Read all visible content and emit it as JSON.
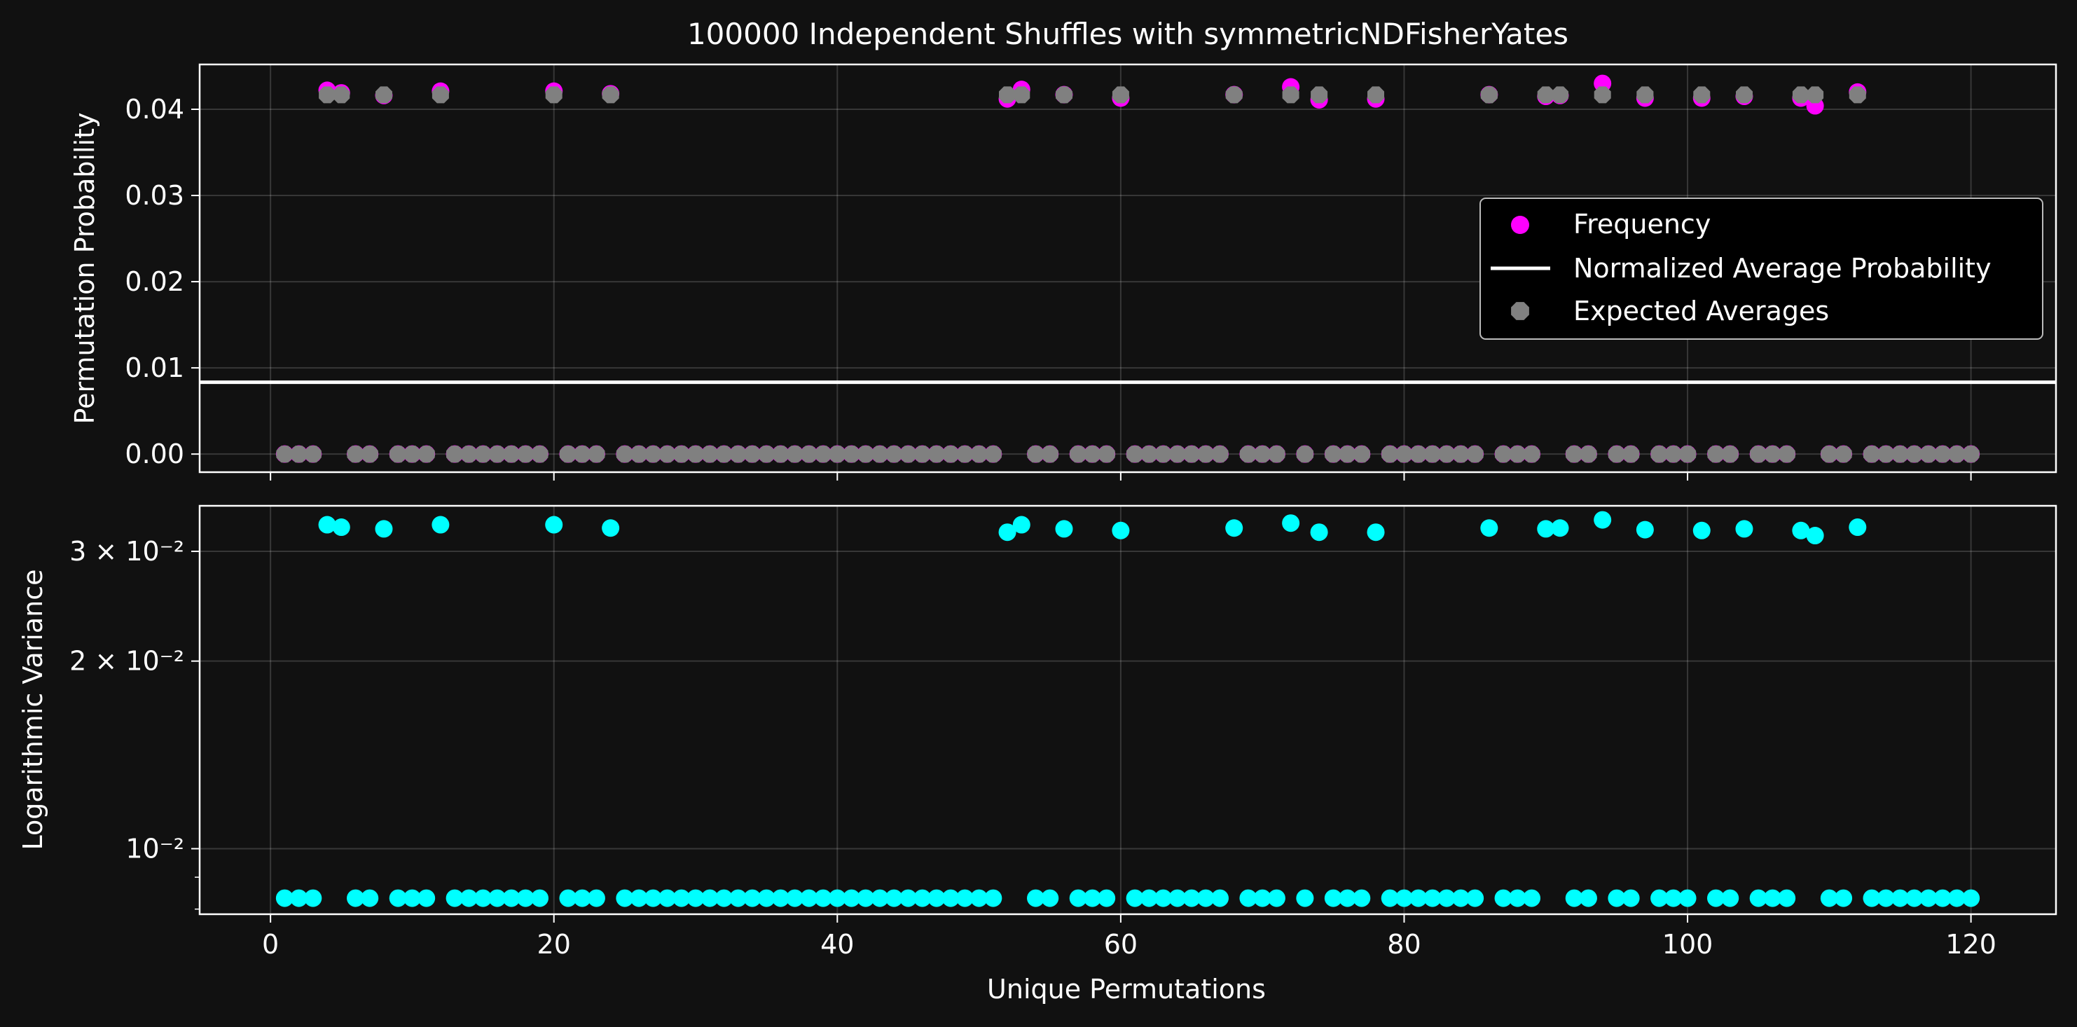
{
  "title": "100000 Independent Shuffles with symmetricNDFisherYates",
  "chart_data": [
    {
      "type": "scatter",
      "ylabel": "Permutation Probability",
      "xlim": [
        -5,
        126
      ],
      "ylim": [
        -0.0021,
        0.0452
      ],
      "yticks": [
        "0.00",
        "0.01",
        "0.02",
        "0.03",
        "0.04"
      ],
      "ytick_values": [
        0,
        0.01,
        0.02,
        0.03,
        0.04
      ],
      "grid": true,
      "legend_placement": "center-right",
      "hline": {
        "name": "Normalized Average Probability",
        "value": 0.00833,
        "color": "#ffffff"
      },
      "series": [
        {
          "name": "Frequency",
          "color": "#ff00ff",
          "x": [
            1,
            2,
            3,
            4,
            5,
            6,
            7,
            8,
            9,
            10,
            11,
            12,
            13,
            14,
            15,
            16,
            17,
            18,
            19,
            20,
            21,
            22,
            23,
            24,
            25,
            26,
            27,
            28,
            29,
            30,
            31,
            32,
            33,
            34,
            35,
            36,
            37,
            38,
            39,
            40,
            41,
            42,
            43,
            44,
            45,
            46,
            47,
            48,
            49,
            50,
            51,
            52,
            53,
            54,
            55,
            56,
            57,
            58,
            59,
            60,
            61,
            62,
            63,
            64,
            65,
            66,
            67,
            68,
            69,
            70,
            71,
            72,
            73,
            74,
            75,
            76,
            77,
            78,
            79,
            80,
            81,
            82,
            83,
            84,
            85,
            86,
            87,
            88,
            89,
            90,
            91,
            92,
            93,
            94,
            95,
            96,
            97,
            98,
            99,
            100,
            101,
            102,
            103,
            104,
            105,
            106,
            107,
            108,
            109,
            110,
            111,
            112,
            113,
            114,
            115,
            116,
            117,
            118,
            119,
            120
          ],
          "y": [
            0,
            0,
            0,
            0.0422,
            0.0419,
            0,
            0,
            0.0416,
            0,
            0,
            0,
            0.0421,
            0,
            0,
            0,
            0,
            0,
            0,
            0,
            0.0421,
            0,
            0,
            0,
            0.0418,
            0,
            0,
            0,
            0,
            0,
            0,
            0,
            0,
            0,
            0,
            0,
            0,
            0,
            0,
            0,
            0,
            0,
            0,
            0,
            0,
            0,
            0,
            0,
            0,
            0,
            0,
            0,
            0.0412,
            0.0423,
            0,
            0,
            0.0417,
            0,
            0,
            0,
            0.0413,
            0,
            0,
            0,
            0,
            0,
            0,
            0,
            0.0417,
            0,
            0,
            0,
            0.0426,
            0,
            0.0411,
            0,
            0,
            0,
            0.0412,
            0,
            0,
            0,
            0,
            0,
            0,
            0,
            0.0417,
            0,
            0,
            0,
            0.0415,
            0.0416,
            0,
            0,
            0.043,
            0,
            0,
            0.0413,
            0,
            0,
            0,
            0.0413,
            0,
            0,
            0.0415,
            0,
            0,
            0,
            0.0413,
            0.0404,
            0,
            0,
            0.042,
            0,
            0,
            0,
            0,
            0,
            0,
            0,
            0
          ]
        },
        {
          "name": "Expected Averages",
          "color": "#808080",
          "x": [
            1,
            2,
            3,
            4,
            5,
            6,
            7,
            8,
            9,
            10,
            11,
            12,
            13,
            14,
            15,
            16,
            17,
            18,
            19,
            20,
            21,
            22,
            23,
            24,
            25,
            26,
            27,
            28,
            29,
            30,
            31,
            32,
            33,
            34,
            35,
            36,
            37,
            38,
            39,
            40,
            41,
            42,
            43,
            44,
            45,
            46,
            47,
            48,
            49,
            50,
            51,
            52,
            53,
            54,
            55,
            56,
            57,
            58,
            59,
            60,
            61,
            62,
            63,
            64,
            65,
            66,
            67,
            68,
            69,
            70,
            71,
            72,
            73,
            74,
            75,
            76,
            77,
            78,
            79,
            80,
            81,
            82,
            83,
            84,
            85,
            86,
            87,
            88,
            89,
            90,
            91,
            92,
            93,
            94,
            95,
            96,
            97,
            98,
            99,
            100,
            101,
            102,
            103,
            104,
            105,
            106,
            107,
            108,
            109,
            110,
            111,
            112,
            113,
            114,
            115,
            116,
            117,
            118,
            119,
            120
          ],
          "y": [
            0,
            0,
            0,
            0.04167,
            0.04167,
            0,
            0,
            0.04167,
            0,
            0,
            0,
            0.04167,
            0,
            0,
            0,
            0,
            0,
            0,
            0,
            0.04167,
            0,
            0,
            0,
            0.04167,
            0,
            0,
            0,
            0,
            0,
            0,
            0,
            0,
            0,
            0,
            0,
            0,
            0,
            0,
            0,
            0,
            0,
            0,
            0,
            0,
            0,
            0,
            0,
            0,
            0,
            0,
            0,
            0.04167,
            0.04167,
            0,
            0,
            0.04167,
            0,
            0,
            0,
            0.04167,
            0,
            0,
            0,
            0,
            0,
            0,
            0,
            0.04167,
            0,
            0,
            0,
            0.04167,
            0,
            0.04167,
            0,
            0,
            0,
            0.04167,
            0,
            0,
            0,
            0,
            0,
            0,
            0,
            0.04167,
            0,
            0,
            0,
            0.04167,
            0.04167,
            0,
            0,
            0.04167,
            0,
            0,
            0.04167,
            0,
            0,
            0,
            0.04167,
            0,
            0,
            0.04167,
            0,
            0,
            0,
            0.04167,
            0.04167,
            0,
            0,
            0.04167,
            0,
            0,
            0,
            0,
            0,
            0,
            0,
            0
          ]
        }
      ]
    },
    {
      "type": "scatter",
      "ylabel": "Logarithmic Variance",
      "xlabel": "Unique Permutations",
      "yscale": "log",
      "xlim": [
        -5,
        126
      ],
      "ylim": [
        0.00785,
        0.0355
      ],
      "xticks": [
        "0",
        "20",
        "40",
        "60",
        "80",
        "100",
        "120"
      ],
      "xtick_values": [
        0,
        20,
        40,
        60,
        80,
        100,
        120
      ],
      "yticks": [
        "3 × 10⁻²",
        "2 × 10⁻²",
        "10⁻²"
      ],
      "ytick_values": [
        0.03,
        0.02,
        0.01
      ],
      "grid": true,
      "series": [
        {
          "name": "",
          "color": "#00ffff",
          "x": [
            1,
            2,
            3,
            4,
            5,
            6,
            7,
            8,
            9,
            10,
            11,
            12,
            13,
            14,
            15,
            16,
            17,
            18,
            19,
            20,
            21,
            22,
            23,
            24,
            25,
            26,
            27,
            28,
            29,
            30,
            31,
            32,
            33,
            34,
            35,
            36,
            37,
            38,
            39,
            40,
            41,
            42,
            43,
            44,
            45,
            46,
            47,
            48,
            49,
            50,
            51,
            52,
            53,
            54,
            55,
            56,
            57,
            58,
            59,
            60,
            61,
            62,
            63,
            64,
            65,
            66,
            67,
            68,
            69,
            70,
            71,
            72,
            73,
            74,
            75,
            76,
            77,
            78,
            79,
            80,
            81,
            82,
            83,
            84,
            85,
            86,
            87,
            88,
            89,
            90,
            91,
            92,
            93,
            94,
            95,
            96,
            97,
            98,
            99,
            100,
            101,
            102,
            103,
            104,
            105,
            106,
            107,
            108,
            109,
            110,
            111,
            112,
            113,
            114,
            115,
            116,
            117,
            118,
            119,
            120
          ],
          "y": [
            0.00833,
            0.00833,
            0.00833,
            0.0331,
            0.0328,
            0.00833,
            0.00833,
            0.0326,
            0.00833,
            0.00833,
            0.00833,
            0.0331,
            0.00833,
            0.00833,
            0.00833,
            0.00833,
            0.00833,
            0.00833,
            0.00833,
            0.0331,
            0.00833,
            0.00833,
            0.00833,
            0.0327,
            0.00833,
            0.00833,
            0.00833,
            0.00833,
            0.00833,
            0.00833,
            0.00833,
            0.00833,
            0.00833,
            0.00833,
            0.00833,
            0.00833,
            0.00833,
            0.00833,
            0.00833,
            0.00833,
            0.00833,
            0.00833,
            0.00833,
            0.00833,
            0.00833,
            0.00833,
            0.00833,
            0.00833,
            0.00833,
            0.00833,
            0.00833,
            0.0322,
            0.0331,
            0.00833,
            0.00833,
            0.0326,
            0.00833,
            0.00833,
            0.00833,
            0.0324,
            0.00833,
            0.00833,
            0.00833,
            0.00833,
            0.00833,
            0.00833,
            0.00833,
            0.0327,
            0.00833,
            0.00833,
            0.00833,
            0.0333,
            0.00833,
            0.0322,
            0.00833,
            0.00833,
            0.00833,
            0.0322,
            0.00833,
            0.00833,
            0.00833,
            0.00833,
            0.00833,
            0.00833,
            0.00833,
            0.0327,
            0.00833,
            0.00833,
            0.00833,
            0.0326,
            0.0327,
            0.00833,
            0.00833,
            0.0337,
            0.00833,
            0.00833,
            0.0325,
            0.00833,
            0.00833,
            0.00833,
            0.0324,
            0.00833,
            0.00833,
            0.0326,
            0.00833,
            0.00833,
            0.00833,
            0.0324,
            0.0318,
            0.00833,
            0.00833,
            0.0328,
            0.00833,
            0.00833,
            0.00833,
            0.00833,
            0.00833,
            0.00833,
            0.00833,
            0.00833
          ]
        }
      ]
    }
  ]
}
